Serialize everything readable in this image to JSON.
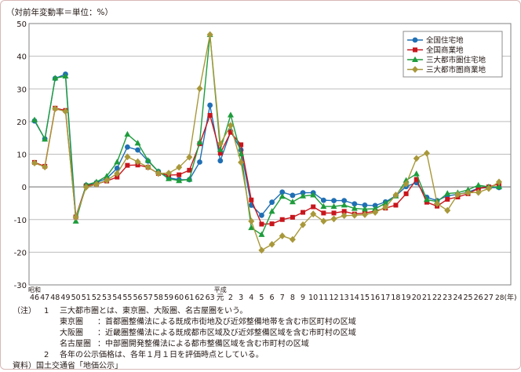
{
  "chart_data": {
    "type": "line",
    "unit_label": "（対前年変動率＝単位：%）",
    "ylim": [
      -30,
      50
    ],
    "yticks": [
      50,
      40,
      30,
      20,
      10,
      0,
      -10,
      -20,
      -30
    ],
    "grid": true,
    "legend_position": "top-right",
    "x_era_labels": {
      "showa": "昭和",
      "heisei": "平成"
    },
    "x_labels": [
      "46",
      "47",
      "48",
      "49",
      "50",
      "51",
      "52",
      "53",
      "54",
      "55",
      "56",
      "57",
      "58",
      "59",
      "60",
      "61",
      "62",
      "63",
      "元",
      "2",
      "3",
      "4",
      "5",
      "6",
      "7",
      "8",
      "9",
      "10",
      "11",
      "12",
      "13",
      "14",
      "15",
      "16",
      "17",
      "18",
      "19",
      "20",
      "21",
      "22",
      "23",
      "24",
      "25",
      "26",
      "27",
      "28(年)"
    ],
    "series": [
      {
        "name": "全国住宅地",
        "color": "#1f6fb4",
        "marker": "circle",
        "values": [
          20.2,
          14.7,
          33.2,
          34.5,
          -9.2,
          0.5,
          1.3,
          2.6,
          5.7,
          12.2,
          11.3,
          7.9,
          4.7,
          2.8,
          2.2,
          2.2,
          7.6,
          25.0,
          8.0,
          17.0,
          11.3,
          -5.6,
          -8.7,
          -4.7,
          -1.6,
          -2.6,
          -1.8,
          -1.8,
          -4.1,
          -4.2,
          -4.2,
          -5.2,
          -5.6,
          -5.7,
          -4.6,
          -2.7,
          0.1,
          1.3,
          -3.2,
          -4.2,
          -2.7,
          -2.3,
          -1.6,
          -0.4,
          -0.2,
          -0.2
        ]
      },
      {
        "name": "全国商業地",
        "color": "#c8161d",
        "marker": "square",
        "values": [
          7.5,
          6.3,
          24.1,
          23.4,
          -9.2,
          0.3,
          0.9,
          1.8,
          3.0,
          6.6,
          6.7,
          6.0,
          4.1,
          3.6,
          3.7,
          5.1,
          13.2,
          21.9,
          10.3,
          16.7,
          12.9,
          -4.0,
          -11.4,
          -11.3,
          -10.0,
          -9.3,
          -7.8,
          -6.1,
          -8.0,
          -8.0,
          -7.5,
          -8.3,
          -8.0,
          -7.4,
          -6.5,
          -5.6,
          -2.1,
          2.3,
          -4.7,
          -5.9,
          -3.8,
          -3.1,
          -2.1,
          -0.5,
          0.0,
          0.9
        ]
      },
      {
        "name": "三大都市圏住宅地",
        "color": "#1e9c3c",
        "marker": "triangle",
        "values": [
          20.5,
          14.6,
          33.3,
          33.9,
          -10.5,
          0.6,
          1.5,
          3.3,
          7.6,
          16.1,
          13.4,
          8.1,
          4.7,
          2.5,
          1.9,
          2.3,
          13.7,
          46.6,
          11.4,
          22.0,
          10.1,
          -12.5,
          -14.6,
          -7.5,
          -2.9,
          -4.6,
          -2.8,
          -2.5,
          -6.0,
          -6.0,
          -5.6,
          -6.6,
          -6.8,
          -6.7,
          -5.0,
          -2.8,
          2.0,
          4.0,
          -3.9,
          -4.5,
          -2.0,
          -1.8,
          -0.9,
          0.5,
          0.0,
          0.0
        ]
      },
      {
        "name": "三大都市圏商業地",
        "color": "#a8983a",
        "marker": "diamond",
        "values": [
          7.3,
          6.1,
          23.9,
          23.1,
          -9.3,
          -0.1,
          0.8,
          2.0,
          4.1,
          9.2,
          7.7,
          6.0,
          4.1,
          4.2,
          6.0,
          9.1,
          30.1,
          46.6,
          13.2,
          18.8,
          7.5,
          -10.5,
          -19.4,
          -17.6,
          -15.0,
          -16.1,
          -11.6,
          -8.3,
          -10.5,
          -9.8,
          -8.8,
          -8.7,
          -8.5,
          -7.8,
          -6.2,
          -2.5,
          0.9,
          8.7,
          10.3,
          -5.1,
          -7.2,
          -2.3,
          -1.8,
          -1.7,
          -0.5,
          1.5
        ]
      }
    ]
  },
  "notes": {
    "note1_mark": "（注）",
    "note1_num": "1",
    "note1_text": "三大都市圏とは、東京圏、大阪圏、名古屋圏をいう。",
    "tokyo_label": "東京圏",
    "tokyo_text": "：首都圏整備法による既成市街地及び近郊整備地帯を含む市区町村の区域",
    "osaka_label": "大阪圏",
    "osaka_text": "：近畿圏整備法による既成都市区域及び近郊整備区域を含む市町村の区域",
    "nagoya_label": "名古屋圏",
    "nagoya_text": "：中部圏開発整備法による都市整備区域を含む市町村の区域",
    "note2_num": "2",
    "note2_text": "各年の公示価格は、各年１月１日を評価時点としている。",
    "source_label": "資料）",
    "source_text": "国土交通省「地価公示」"
  }
}
